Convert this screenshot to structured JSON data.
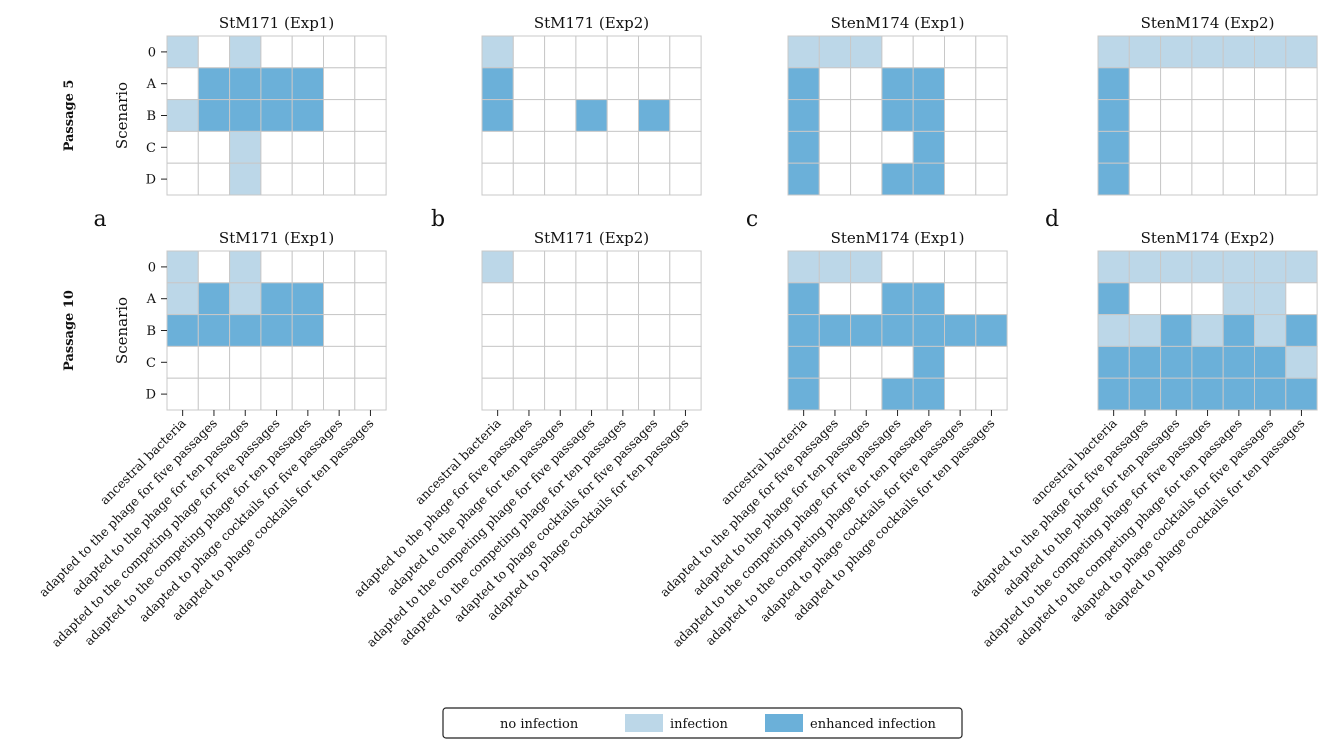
{
  "colors": {
    "none": "#ffffff",
    "infection": "#bcd7e8",
    "enhanced": "#6bb0d9",
    "grid": "#c8c8c8",
    "frame": "#000000"
  },
  "chart_data": {
    "type": "heatmap",
    "ylabel": "Scenario",
    "scenarios": [
      "0",
      "A",
      "B",
      "C",
      "D"
    ],
    "categories": [
      "ancestral bacteria",
      "adapted to the phage for five passages",
      "adapted to the phage for ten passages",
      "adapted to the competing phage for five passages",
      "adapted to the competing phage for ten passages",
      "adapted to phage cocktails for five passages",
      "adapted to phage cocktails for ten passages"
    ],
    "value_legend": {
      "0": "no infection",
      "1": "infection",
      "2": "enhanced infection"
    },
    "rows": [
      {
        "label": "Passage 5"
      },
      {
        "label": "Passage 10"
      }
    ],
    "panel_letters": [
      "a",
      "b",
      "c",
      "d"
    ],
    "panels": [
      {
        "title": "StM171 (Exp1)",
        "row": 0,
        "col": 0,
        "grid": [
          [
            1,
            0,
            1,
            0,
            0,
            0,
            0
          ],
          [
            0,
            2,
            2,
            2,
            2,
            0,
            0
          ],
          [
            1,
            2,
            2,
            2,
            2,
            0,
            0
          ],
          [
            0,
            0,
            1,
            0,
            0,
            0,
            0
          ],
          [
            0,
            0,
            1,
            0,
            0,
            0,
            0
          ]
        ]
      },
      {
        "title": "StM171 (Exp2)",
        "row": 0,
        "col": 1,
        "grid": [
          [
            1,
            0,
            0,
            0,
            0,
            0,
            0
          ],
          [
            2,
            0,
            0,
            0,
            0,
            0,
            0
          ],
          [
            2,
            0,
            0,
            2,
            0,
            2,
            0
          ],
          [
            0,
            0,
            0,
            0,
            0,
            0,
            0
          ],
          [
            0,
            0,
            0,
            0,
            0,
            0,
            0
          ]
        ]
      },
      {
        "title": "StenM174 (Exp1)",
        "row": 0,
        "col": 2,
        "grid": [
          [
            1,
            1,
            1,
            0,
            0,
            0,
            0
          ],
          [
            2,
            0,
            0,
            2,
            2,
            0,
            0
          ],
          [
            2,
            0,
            0,
            2,
            2,
            0,
            0
          ],
          [
            2,
            0,
            0,
            0,
            2,
            0,
            0
          ],
          [
            2,
            0,
            0,
            2,
            2,
            0,
            0
          ]
        ]
      },
      {
        "title": "StenM174 (Exp2)",
        "row": 0,
        "col": 3,
        "grid": [
          [
            1,
            1,
            1,
            1,
            1,
            1,
            1
          ],
          [
            2,
            0,
            0,
            0,
            0,
            0,
            0
          ],
          [
            2,
            0,
            0,
            0,
            0,
            0,
            0
          ],
          [
            2,
            0,
            0,
            0,
            0,
            0,
            0
          ],
          [
            2,
            0,
            0,
            0,
            0,
            0,
            0
          ]
        ]
      },
      {
        "title": "StM171 (Exp1)",
        "row": 1,
        "col": 0,
        "grid": [
          [
            1,
            0,
            1,
            0,
            0,
            0,
            0
          ],
          [
            1,
            2,
            1,
            2,
            2,
            0,
            0
          ],
          [
            2,
            2,
            2,
            2,
            2,
            0,
            0
          ],
          [
            0,
            0,
            0,
            0,
            0,
            0,
            0
          ],
          [
            0,
            0,
            0,
            0,
            0,
            0,
            0
          ]
        ]
      },
      {
        "title": "StM171 (Exp2)",
        "row": 1,
        "col": 1,
        "grid": [
          [
            1,
            0,
            0,
            0,
            0,
            0,
            0
          ],
          [
            0,
            0,
            0,
            0,
            0,
            0,
            0
          ],
          [
            0,
            0,
            0,
            0,
            0,
            0,
            0
          ],
          [
            0,
            0,
            0,
            0,
            0,
            0,
            0
          ],
          [
            0,
            0,
            0,
            0,
            0,
            0,
            0
          ]
        ]
      },
      {
        "title": "StenM174 (Exp1)",
        "row": 1,
        "col": 2,
        "grid": [
          [
            1,
            1,
            1,
            0,
            0,
            0,
            0
          ],
          [
            2,
            0,
            0,
            2,
            2,
            0,
            0
          ],
          [
            2,
            2,
            2,
            2,
            2,
            2,
            2
          ],
          [
            2,
            0,
            0,
            0,
            2,
            0,
            0
          ],
          [
            2,
            0,
            0,
            2,
            2,
            0,
            0
          ]
        ]
      },
      {
        "title": "StenM174 (Exp2)",
        "row": 1,
        "col": 3,
        "grid": [
          [
            1,
            1,
            1,
            1,
            1,
            1,
            1
          ],
          [
            2,
            0,
            0,
            0,
            1,
            1,
            0
          ],
          [
            1,
            1,
            2,
            1,
            2,
            1,
            2
          ],
          [
            2,
            2,
            2,
            2,
            2,
            2,
            1
          ],
          [
            2,
            2,
            2,
            2,
            2,
            2,
            2
          ]
        ]
      }
    ]
  }
}
